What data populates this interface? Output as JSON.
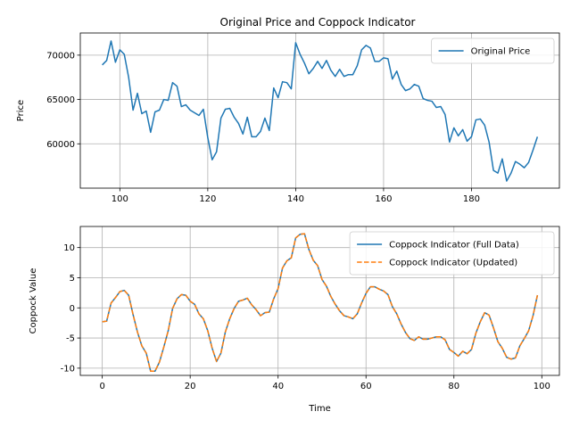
{
  "chart_data": [
    {
      "type": "line",
      "title": "Original Price and Coppock Indicator",
      "xlabel": "",
      "ylabel": "Price",
      "xlim": [
        91,
        200
      ],
      "ylim": [
        55000,
        72500
      ],
      "xticks": [
        100,
        120,
        140,
        160,
        180
      ],
      "yticks": [
        60000,
        65000,
        70000
      ],
      "grid": true,
      "legend_position": "upper right",
      "colors": {
        "Original Price": "#1f77b4"
      },
      "x_start": 96,
      "series": [
        {
          "name": "Original Price",
          "style": "solid",
          "values": [
            68900,
            69400,
            71600,
            69200,
            70600,
            70100,
            67500,
            63800,
            65700,
            63400,
            63700,
            61300,
            63600,
            63800,
            65000,
            64900,
            66900,
            66500,
            64200,
            64400,
            63800,
            63500,
            63200,
            63900,
            60700,
            58200,
            59100,
            62900,
            63900,
            64000,
            63000,
            62300,
            61100,
            63000,
            60800,
            60800,
            61400,
            62900,
            61500,
            66300,
            65200,
            67000,
            66900,
            66200,
            71400,
            70100,
            69100,
            67900,
            68500,
            69300,
            68500,
            69400,
            68300,
            67600,
            68400,
            67600,
            67800,
            67800,
            68800,
            70600,
            71100,
            70800,
            69300,
            69300,
            69700,
            69600,
            67300,
            68200,
            66700,
            66000,
            66200,
            66700,
            66500,
            65100,
            64900,
            64800,
            64100,
            64200,
            63300,
            60200,
            61800,
            60900,
            61600,
            60300,
            60800,
            62700,
            62800,
            62100,
            60200,
            57000,
            56700,
            58300,
            55800,
            56700,
            58000,
            57700,
            57300,
            57900,
            59300,
            60800
          ]
        }
      ]
    },
    {
      "type": "line",
      "title": "",
      "xlabel": "Time",
      "ylabel": "Coppock Value",
      "xlim": [
        -5,
        104
      ],
      "ylim": [
        -11.2,
        13.5
      ],
      "xticks": [
        0,
        20,
        40,
        60,
        80,
        100
      ],
      "yticks": [
        -10,
        -5,
        0,
        5,
        10
      ],
      "grid": true,
      "legend_position": "upper right",
      "colors": {
        "Coppock Indicator (Full Data)": "#1f77b4",
        "Coppock Indicator (Updated)": "#ff7f0e"
      },
      "x_start": 0,
      "series": [
        {
          "name": "Coppock Indicator (Full Data)",
          "style": "solid",
          "values": [
            -2.3,
            -2.2,
            0.8,
            1.7,
            2.7,
            2.9,
            2.1,
            -1.1,
            -4.0,
            -6.3,
            -7.5,
            -10.5,
            -10.5,
            -9.0,
            -6.5,
            -3.8,
            -0.1,
            1.5,
            2.2,
            2.1,
            1.1,
            0.6,
            -1.0,
            -1.8,
            -3.8,
            -6.7,
            -8.9,
            -7.5,
            -4.0,
            -1.8,
            -0.1,
            1.1,
            1.3,
            1.6,
            0.5,
            -0.3,
            -1.3,
            -0.8,
            -0.7,
            1.5,
            3.2,
            6.6,
            7.8,
            8.3,
            11.6,
            12.2,
            12.3,
            9.7,
            7.9,
            7.0,
            4.7,
            3.6,
            1.9,
            0.6,
            -0.5,
            -1.3,
            -1.5,
            -1.8,
            -1.0,
            0.8,
            2.4,
            3.5,
            3.5,
            3.1,
            2.8,
            2.2,
            0.2,
            -1.0,
            -2.7,
            -4.1,
            -5.1,
            -5.4,
            -4.8,
            -5.2,
            -5.2,
            -5.0,
            -4.8,
            -4.8,
            -5.3,
            -6.9,
            -7.4,
            -8.0,
            -7.2,
            -7.6,
            -6.9,
            -4.2,
            -2.3,
            -0.8,
            -1.2,
            -3.3,
            -5.6,
            -6.7,
            -8.2,
            -8.5,
            -8.3,
            -6.3,
            -5.1,
            -3.8,
            -1.3,
            2.1
          ]
        },
        {
          "name": "Coppock Indicator (Updated)",
          "style": "dashed",
          "values": [
            -2.3,
            -2.2,
            0.8,
            1.7,
            2.7,
            2.9,
            2.1,
            -1.1,
            -4.0,
            -6.3,
            -7.5,
            -10.5,
            -10.5,
            -9.0,
            -6.5,
            -3.8,
            -0.1,
            1.5,
            2.2,
            2.1,
            1.1,
            0.6,
            -1.0,
            -1.8,
            -3.8,
            -6.7,
            -8.9,
            -7.5,
            -4.0,
            -1.8,
            -0.1,
            1.1,
            1.3,
            1.6,
            0.5,
            -0.3,
            -1.3,
            -0.8,
            -0.7,
            1.5,
            3.2,
            6.6,
            7.8,
            8.3,
            11.6,
            12.2,
            12.3,
            9.7,
            7.9,
            7.0,
            4.7,
            3.6,
            1.9,
            0.6,
            -0.5,
            -1.3,
            -1.5,
            -1.8,
            -1.0,
            0.8,
            2.4,
            3.5,
            3.5,
            3.1,
            2.8,
            2.2,
            0.2,
            -1.0,
            -2.7,
            -4.1,
            -5.1,
            -5.4,
            -4.8,
            -5.2,
            -5.2,
            -5.0,
            -4.8,
            -4.8,
            -5.3,
            -6.9,
            -7.4,
            -8.0,
            -7.2,
            -7.6,
            -6.9,
            -4.2,
            -2.3,
            -0.8,
            -1.2,
            -3.3,
            -5.6,
            -6.7,
            -8.2,
            -8.5,
            -8.3,
            -6.3,
            -5.1,
            -3.8,
            -1.3,
            2.1
          ]
        }
      ]
    }
  ]
}
